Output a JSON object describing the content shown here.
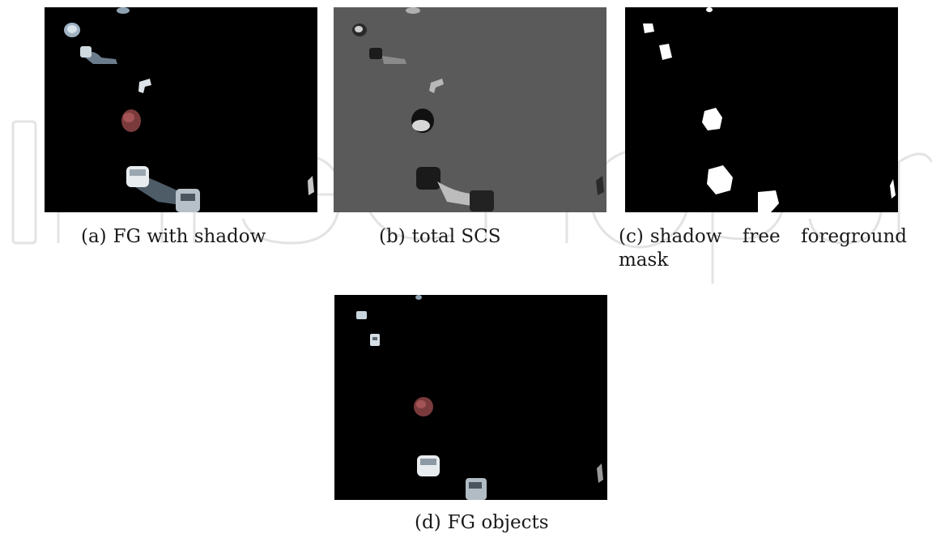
{
  "figure": {
    "panels": [
      {
        "id": "a",
        "tag": "(a)",
        "caption": "FG with shadow",
        "background": "#000000"
      },
      {
        "id": "b",
        "tag": "(b)",
        "caption": "total SCS",
        "background": "#5a5a5a"
      },
      {
        "id": "c",
        "tag": "(c)",
        "caption": "shadow free foreground mask",
        "background": "#000000"
      },
      {
        "id": "d",
        "tag": "(d)",
        "caption": "FG objects",
        "background": "#000000"
      }
    ]
  },
  "watermark": {
    "text": "IntechOpen",
    "color": "#e6e6e6"
  }
}
